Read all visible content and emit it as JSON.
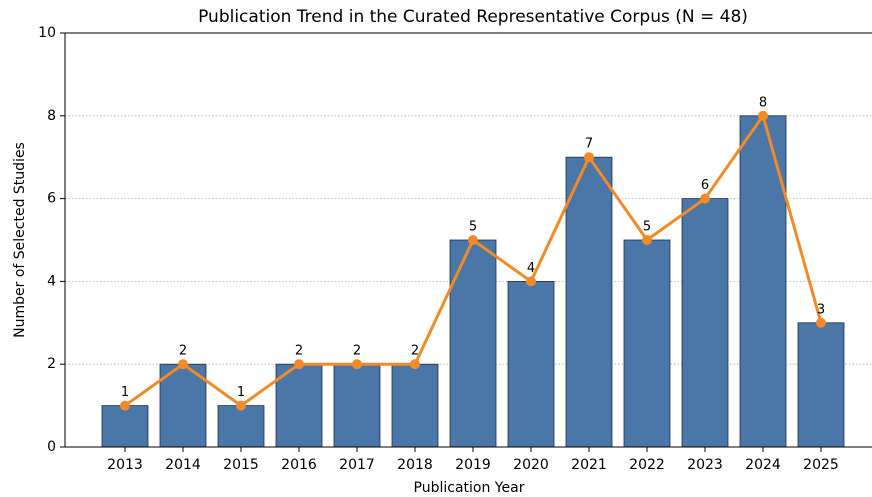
{
  "chart_data": {
    "type": "bar",
    "title": "Publication Trend in the Curated Representative Corpus (N = 48)",
    "x_label": "Publication Year",
    "y_label": "Number of Selected Studies",
    "categories": [
      "2013",
      "2014",
      "2015",
      "2016",
      "2017",
      "2018",
      "2019",
      "2020",
      "2021",
      "2022",
      "2023",
      "2024",
      "2025"
    ],
    "values": [
      1,
      2,
      1,
      2,
      2,
      2,
      5,
      4,
      7,
      5,
      6,
      8,
      3
    ],
    "color": "#4a76a8",
    "line_color": "#f28a27",
    "ylim": [
      0,
      10
    ],
    "yticks": [
      0,
      2,
      4,
      6,
      8,
      10
    ],
    "grid": true
  }
}
